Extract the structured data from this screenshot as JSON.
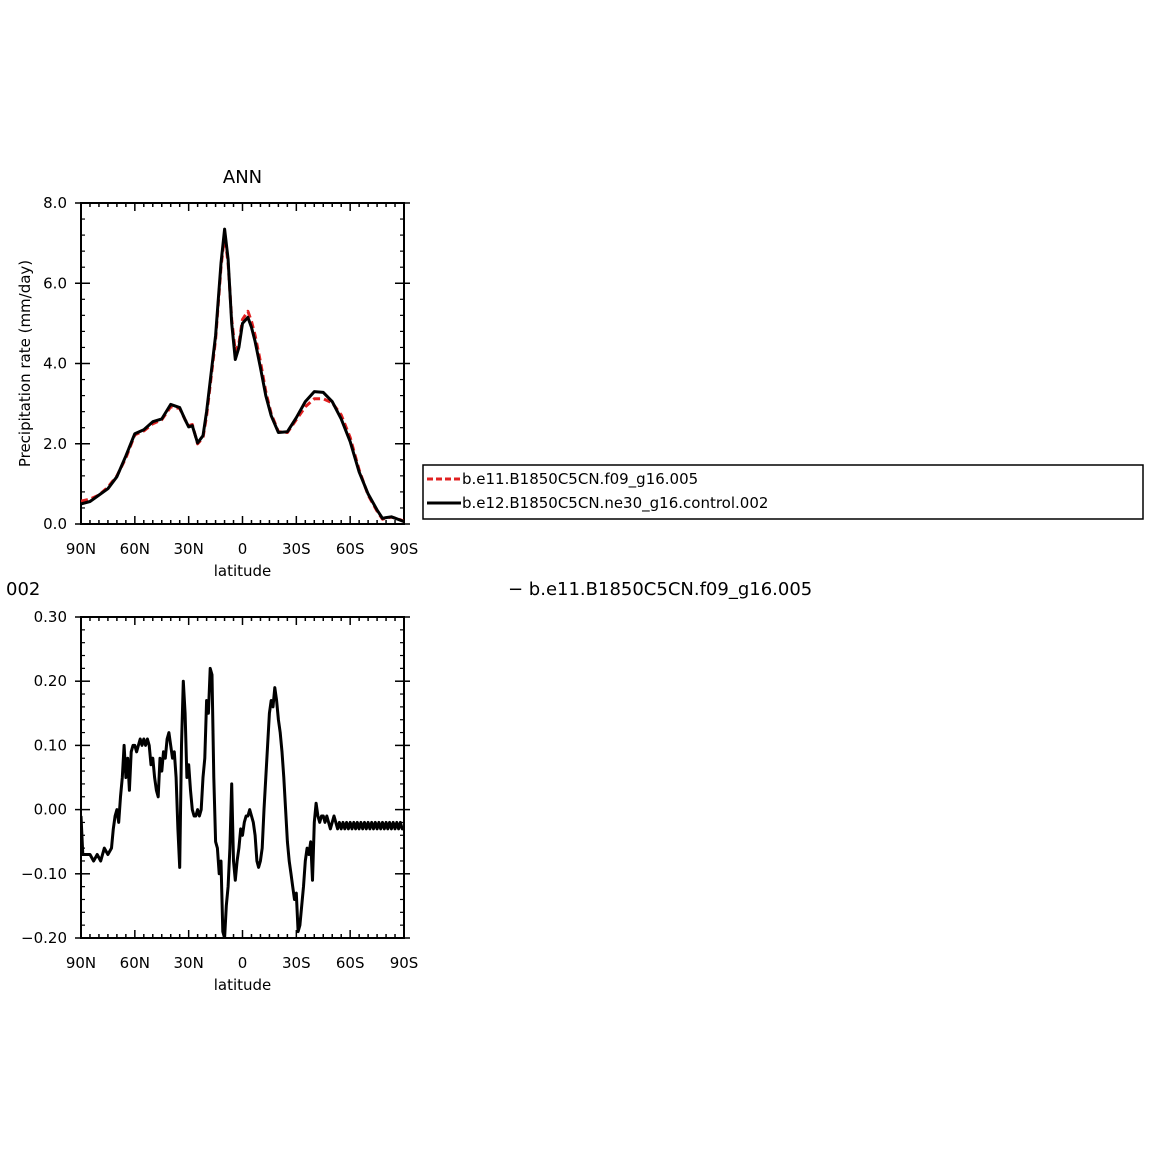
{
  "chart_data": [
    {
      "type": "line",
      "title": "ANN",
      "xlabel": "latitude",
      "ylabel": "Precipitation rate (mm/day)",
      "xlim": [
        90,
        -90
      ],
      "ylim": [
        0.0,
        8.0
      ],
      "x_ticks": [
        {
          "value": 90,
          "label": "90N"
        },
        {
          "value": 60,
          "label": "60N"
        },
        {
          "value": 30,
          "label": "30N"
        },
        {
          "value": 0,
          "label": "0"
        },
        {
          "value": -30,
          "label": "30S"
        },
        {
          "value": -60,
          "label": "60S"
        },
        {
          "value": -90,
          "label": "90S"
        }
      ],
      "y_ticks": [
        {
          "value": 0.0,
          "label": "0.0"
        },
        {
          "value": 2.0,
          "label": "2.0"
        },
        {
          "value": 4.0,
          "label": "4.0"
        },
        {
          "value": 6.0,
          "label": "6.0"
        },
        {
          "value": 8.0,
          "label": "8.0"
        }
      ],
      "grid": false,
      "legend": {
        "placement": "right"
      },
      "series": [
        {
          "name": "b.e11.B1850C5CN.f09_g16.005",
          "color": "#e02020",
          "dash": "dashed",
          "x": [
            90,
            85,
            80,
            75,
            70,
            65,
            60,
            55,
            50,
            45,
            40,
            35,
            32,
            30,
            28,
            25,
            22,
            20,
            15,
            12,
            10,
            8,
            6,
            4,
            2,
            0,
            -3,
            -5,
            -7,
            -10,
            -13,
            -16,
            -20,
            -25,
            -30,
            -35,
            -40,
            -45,
            -50,
            -55,
            -60,
            -65,
            -70,
            -75,
            -78,
            -80,
            -83,
            -86,
            -90
          ],
          "y": [
            0.57,
            0.62,
            0.72,
            0.92,
            1.2,
            1.65,
            2.22,
            2.32,
            2.5,
            2.6,
            2.92,
            2.88,
            2.6,
            2.45,
            2.48,
            2.0,
            2.15,
            2.7,
            4.6,
            6.4,
            7.2,
            6.5,
            5.1,
            4.3,
            4.5,
            5.1,
            5.3,
            5.05,
            4.7,
            4.05,
            3.3,
            2.75,
            2.3,
            2.28,
            2.6,
            2.92,
            3.12,
            3.12,
            3.02,
            2.72,
            2.15,
            1.35,
            0.72,
            0.32,
            0.12,
            0.15,
            0.17,
            0.14,
            0.07
          ]
        },
        {
          "name": "b.e12.B1850C5CN.ne30_g16.control.002",
          "color": "#000000",
          "dash": "solid",
          "x": [
            90,
            85,
            80,
            75,
            70,
            65,
            60,
            55,
            50,
            45,
            40,
            35,
            32,
            30,
            28,
            25,
            22,
            20,
            15,
            12,
            10,
            8,
            6,
            4,
            2,
            0,
            -3,
            -5,
            -7,
            -10,
            -13,
            -16,
            -20,
            -25,
            -30,
            -35,
            -40,
            -45,
            -50,
            -55,
            -60,
            -65,
            -70,
            -75,
            -78,
            -80,
            -83,
            -86,
            -90
          ],
          "y": [
            0.5,
            0.56,
            0.72,
            0.88,
            1.18,
            1.7,
            2.25,
            2.35,
            2.55,
            2.62,
            2.98,
            2.9,
            2.6,
            2.42,
            2.45,
            2.02,
            2.2,
            2.8,
            4.7,
            6.5,
            7.35,
            6.6,
            5.0,
            4.1,
            4.4,
            5.0,
            5.15,
            4.9,
            4.55,
            3.9,
            3.2,
            2.7,
            2.28,
            2.3,
            2.65,
            3.05,
            3.3,
            3.28,
            3.05,
            2.62,
            2.05,
            1.3,
            0.75,
            0.35,
            0.14,
            0.16,
            0.18,
            0.13,
            0.06
          ]
        }
      ]
    },
    {
      "type": "line",
      "title": "",
      "xlabel": "latitude",
      "ylabel": "",
      "xlim": [
        90,
        -90
      ],
      "ylim": [
        -0.2,
        0.3
      ],
      "x_ticks": [
        {
          "value": 90,
          "label": "90N"
        },
        {
          "value": 60,
          "label": "60N"
        },
        {
          "value": 30,
          "label": "30N"
        },
        {
          "value": 0,
          "label": "0"
        },
        {
          "value": -30,
          "label": "30S"
        },
        {
          "value": -60,
          "label": "60S"
        },
        {
          "value": -90,
          "label": "90S"
        }
      ],
      "y_ticks": [
        {
          "value": -0.2,
          "label": "−0.20"
        },
        {
          "value": -0.1,
          "label": "−0.10"
        },
        {
          "value": 0.0,
          "label": "0.00"
        },
        {
          "value": 0.1,
          "label": "0.10"
        },
        {
          "value": 0.2,
          "label": "0.20"
        },
        {
          "value": 0.3,
          "label": "0.30"
        }
      ],
      "grid": false,
      "series": [
        {
          "color": "#000000",
          "dash": "solid",
          "x": [
            90,
            89,
            87,
            85,
            83,
            81,
            79,
            77,
            75,
            73,
            72,
            71,
            70,
            69,
            68,
            67,
            66,
            65,
            64,
            63,
            62,
            61,
            60,
            59,
            58,
            57,
            56,
            55,
            54,
            53,
            52,
            51,
            50,
            49,
            48,
            47,
            46,
            45,
            44,
            43,
            42,
            41,
            40,
            39,
            38,
            37,
            36,
            35,
            34,
            33,
            32,
            31,
            30,
            29,
            28,
            27,
            26,
            25,
            24,
            23,
            22,
            21,
            20,
            19,
            18,
            17,
            16,
            15,
            14,
            13,
            12,
            11,
            10,
            9,
            8,
            7,
            6,
            5,
            4,
            3,
            2,
            1,
            0,
            -1,
            -2,
            -3,
            -4,
            -5,
            -6,
            -7,
            -8,
            -9,
            -10,
            -11,
            -12,
            -13,
            -14,
            -15,
            -16,
            -17,
            -18,
            -19,
            -20,
            -21,
            -22,
            -23,
            -24,
            -25,
            -26,
            -27,
            -28,
            -29,
            -30,
            -31,
            -32,
            -33,
            -34,
            -35,
            -36,
            -37,
            -38,
            -39,
            -40,
            -41,
            -42,
            -43,
            -44,
            -45,
            -46,
            -47,
            -48,
            -49,
            -50,
            -51,
            -52,
            -53,
            -54,
            -55,
            -56,
            -57,
            -58,
            -59,
            -60,
            -61,
            -62,
            -63,
            -64,
            -65,
            -66,
            -67,
            -68,
            -69,
            -70,
            -71,
            -72,
            -73,
            -74,
            -75,
            -76,
            -77,
            -78,
            -79,
            -80,
            -81,
            -82,
            -83,
            -84,
            -85,
            -86,
            -87,
            -88,
            -89,
            -90
          ],
          "y": [
            -0.01,
            -0.07,
            -0.07,
            -0.07,
            -0.08,
            -0.07,
            -0.08,
            -0.06,
            -0.07,
            -0.06,
            -0.03,
            -0.01,
            0.0,
            -0.02,
            0.02,
            0.05,
            0.1,
            0.05,
            0.08,
            0.03,
            0.09,
            0.1,
            0.1,
            0.09,
            0.1,
            0.11,
            0.1,
            0.11,
            0.1,
            0.11,
            0.1,
            0.07,
            0.08,
            0.05,
            0.03,
            0.02,
            0.08,
            0.06,
            0.09,
            0.08,
            0.11,
            0.12,
            0.1,
            0.08,
            0.09,
            0.05,
            -0.03,
            -0.09,
            0.1,
            0.2,
            0.15,
            0.05,
            0.07,
            0.03,
            0.0,
            -0.01,
            -0.01,
            0.0,
            -0.01,
            0.0,
            0.05,
            0.08,
            0.17,
            0.15,
            0.22,
            0.21,
            0.05,
            -0.05,
            -0.06,
            -0.1,
            -0.08,
            -0.19,
            -0.2,
            -0.15,
            -0.12,
            -0.06,
            0.04,
            -0.08,
            -0.11,
            -0.08,
            -0.06,
            -0.03,
            -0.04,
            -0.02,
            -0.01,
            -0.01,
            0.0,
            -0.01,
            -0.02,
            -0.04,
            -0.08,
            -0.09,
            -0.08,
            -0.06,
            0.0,
            0.05,
            0.1,
            0.15,
            0.17,
            0.16,
            0.19,
            0.17,
            0.14,
            0.12,
            0.09,
            0.05,
            0.0,
            -0.05,
            -0.08,
            -0.1,
            -0.12,
            -0.14,
            -0.13,
            -0.19,
            -0.18,
            -0.15,
            -0.12,
            -0.08,
            -0.06,
            -0.07,
            -0.05,
            -0.11,
            -0.02,
            0.01,
            -0.01,
            -0.02,
            -0.01,
            -0.01,
            -0.02,
            -0.01,
            -0.02,
            -0.03,
            -0.02,
            -0.01,
            -0.02,
            -0.03,
            -0.02,
            -0.03,
            -0.02,
            -0.03,
            -0.02,
            -0.03,
            -0.02,
            -0.03,
            -0.02,
            -0.03,
            -0.02,
            -0.03,
            -0.02,
            -0.03,
            -0.02,
            -0.03,
            -0.02,
            -0.03,
            -0.02,
            -0.03,
            -0.02,
            -0.03,
            -0.02,
            -0.03,
            -0.02,
            -0.03,
            -0.02,
            -0.03,
            -0.02,
            -0.03,
            -0.02,
            -0.03,
            -0.02,
            -0.03,
            -0.02,
            -0.03,
            -0.03
          ]
        }
      ]
    }
  ],
  "fragments": {
    "left_label": "002",
    "right_label": "− b.e11.B1850C5CN.f09_g16.005"
  }
}
